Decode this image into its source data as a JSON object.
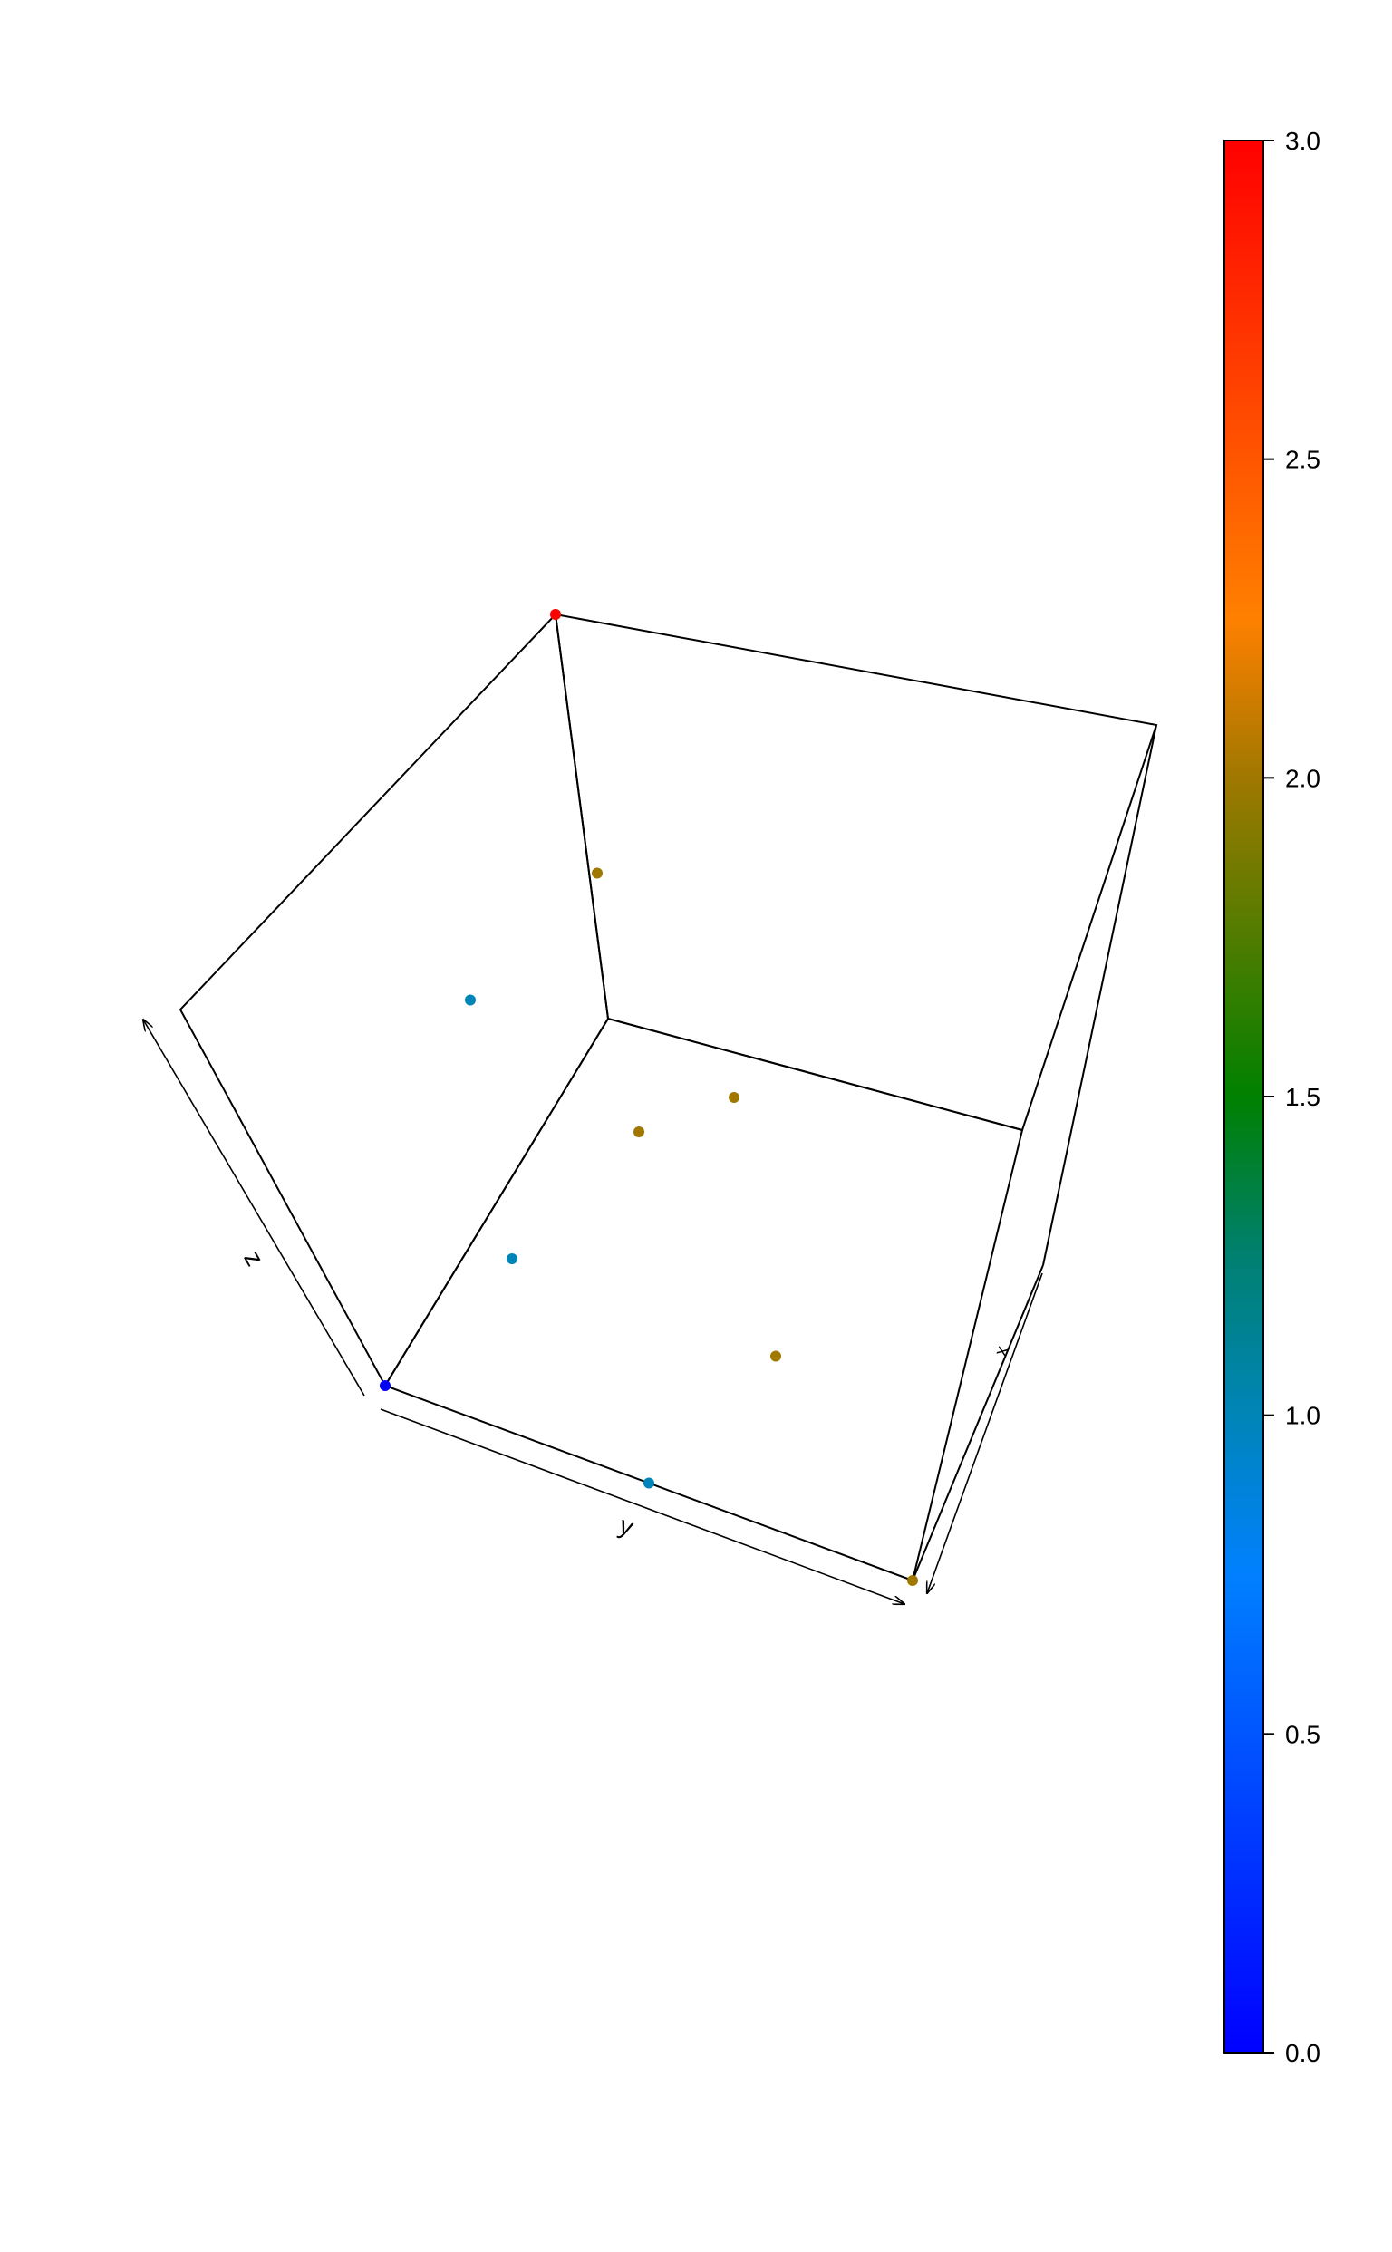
{
  "chart_data": {
    "type": "scatter",
    "subtype": "3d-scatter",
    "title": "",
    "axes": {
      "x": {
        "label": "x"
      },
      "y": {
        "label": "y"
      },
      "z": {
        "label": "z"
      }
    },
    "box": "full",
    "grid": false,
    "colorkey": {
      "position": "right",
      "range": [
        0,
        3
      ],
      "ticks": [
        {
          "value": 0,
          "label": "0.0"
        },
        {
          "value": 0.5,
          "label": "0.5"
        },
        {
          "value": 1,
          "label": "1.0"
        },
        {
          "value": 1.5,
          "label": "1.5"
        },
        {
          "value": 2,
          "label": "2.0"
        },
        {
          "value": 2.5,
          "label": "2.5"
        },
        {
          "value": 3,
          "label": "3.0"
        }
      ],
      "colors": [
        {
          "value": 0,
          "color": "#0000FF"
        },
        {
          "value": 0.75,
          "color": "#0080FF"
        },
        {
          "value": 1,
          "color": "#0085B8"
        },
        {
          "value": 1.25,
          "color": "#008070"
        },
        {
          "value": 1.5,
          "color": "#008000"
        },
        {
          "value": 2,
          "color": "#A07800"
        },
        {
          "value": 2.25,
          "color": "#FF8000"
        },
        {
          "value": 3,
          "color": "#FF0000"
        }
      ]
    },
    "points": [
      {
        "x": 0,
        "y": 0,
        "z": 0,
        "value": 0
      },
      {
        "x": 1,
        "y": 0,
        "z": 0,
        "value": 1
      },
      {
        "x": 2,
        "y": 0,
        "z": 0,
        "value": 2
      },
      {
        "x": 0,
        "y": 1,
        "z": 0,
        "value": 1
      },
      {
        "x": 0,
        "y": 2,
        "z": 0,
        "value": 2
      },
      {
        "x": 0,
        "y": 0,
        "z": 1,
        "value": 1
      },
      {
        "x": 0,
        "y": 0,
        "z": 2,
        "value": 2
      },
      {
        "x": 1,
        "y": 1,
        "z": 0,
        "value": 2
      },
      {
        "x": 1,
        "y": 0,
        "z": 1,
        "value": 2
      },
      {
        "x": 0,
        "y": 1,
        "z": 1,
        "value": 2
      },
      {
        "x": 1,
        "y": 1,
        "z": 1,
        "value": 3
      }
    ]
  }
}
